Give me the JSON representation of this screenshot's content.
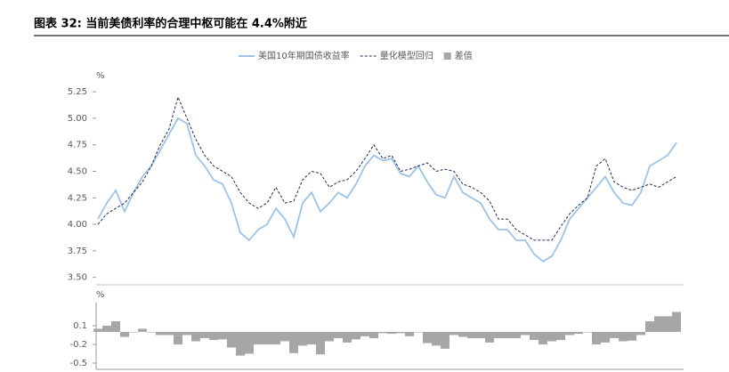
{
  "header": {
    "title": "图表 32: 当前美债利率的合理中枢可能在 4.4%附近"
  },
  "chart_data": [
    {
      "type": "line",
      "y_label": "%",
      "ylim": [
        3.43,
        5.36
      ],
      "yticks": [
        {
          "value": 3.5,
          "label": "3.50"
        },
        {
          "value": 3.75,
          "label": "3.75"
        },
        {
          "value": 4,
          "label": "4.00"
        },
        {
          "value": 4.25,
          "label": "4.25"
        },
        {
          "value": 4.5,
          "label": "4.50"
        },
        {
          "value": 4.75,
          "label": "4.75"
        },
        {
          "value": 5,
          "label": "5.00"
        },
        {
          "value": 5.25,
          "label": "5.25"
        }
      ],
      "series": [
        {
          "name": "美国10年期国债收益率",
          "color": "#9dc3e6",
          "dashed": false,
          "values": [
            4.05,
            4.2,
            4.32,
            4.12,
            4.3,
            4.45,
            4.55,
            4.7,
            4.85,
            5.0,
            4.95,
            4.65,
            4.55,
            4.42,
            4.38,
            4.2,
            3.92,
            3.85,
            3.95,
            4.0,
            4.15,
            4.05,
            3.88,
            4.2,
            4.3,
            4.12,
            4.2,
            4.3,
            4.25,
            4.38,
            4.55,
            4.65,
            4.6,
            4.62,
            4.48,
            4.45,
            4.55,
            4.4,
            4.28,
            4.25,
            4.45,
            4.3,
            4.25,
            4.2,
            4.05,
            3.95,
            3.95,
            3.85,
            3.85,
            3.72,
            3.65,
            3.7,
            3.85,
            4.05,
            4.15,
            4.25,
            4.35,
            4.45,
            4.3,
            4.2,
            4.18,
            4.3,
            4.55,
            4.6,
            4.65,
            4.77
          ]
        },
        {
          "name": "量化模型回归",
          "color": "#1f2a5a",
          "dashed": true,
          "values": [
            4.0,
            4.1,
            4.15,
            4.2,
            4.3,
            4.4,
            4.55,
            4.75,
            4.9,
            5.2,
            5.0,
            4.8,
            4.65,
            4.55,
            4.5,
            4.45,
            4.3,
            4.2,
            4.15,
            4.2,
            4.35,
            4.2,
            4.22,
            4.42,
            4.5,
            4.48,
            4.35,
            4.4,
            4.42,
            4.5,
            4.62,
            4.75,
            4.62,
            4.65,
            4.5,
            4.52,
            4.55,
            4.58,
            4.5,
            4.52,
            4.5,
            4.38,
            4.35,
            4.3,
            4.22,
            4.05,
            4.05,
            3.95,
            3.9,
            3.85,
            3.85,
            3.85,
            3.98,
            4.1,
            4.18,
            4.25,
            4.55,
            4.62,
            4.4,
            4.35,
            4.32,
            4.35,
            4.38,
            4.35,
            4.4,
            4.45
          ]
        }
      ]
    },
    {
      "type": "bar",
      "y_label": "%",
      "ylim": [
        -0.6,
        0.47
      ],
      "yticks": [
        0.1,
        -0.2,
        -0.5
      ],
      "series": [
        {
          "name": "差值",
          "color": "#a6a6a6",
          "values": [
            0.05,
            0.1,
            0.17,
            -0.08,
            0,
            0.05,
            0,
            -0.05,
            -0.05,
            -0.2,
            -0.05,
            -0.15,
            -0.1,
            -0.13,
            -0.12,
            -0.25,
            -0.38,
            -0.35,
            -0.2,
            -0.2,
            -0.2,
            -0.15,
            -0.34,
            -0.22,
            -0.2,
            -0.36,
            -0.15,
            -0.1,
            -0.17,
            -0.12,
            -0.07,
            -0.1,
            -0.02,
            -0.03,
            -0.02,
            -0.07,
            0,
            -0.18,
            -0.22,
            -0.27,
            -0.05,
            -0.08,
            -0.1,
            -0.1,
            -0.17,
            -0.1,
            -0.1,
            -0.1,
            -0.05,
            -0.13,
            -0.2,
            -0.15,
            -0.13,
            -0.05,
            -0.03,
            0,
            -0.2,
            -0.17,
            -0.1,
            -0.15,
            -0.14,
            -0.05,
            0.17,
            0.25,
            0.25,
            0.32
          ]
        }
      ]
    }
  ]
}
